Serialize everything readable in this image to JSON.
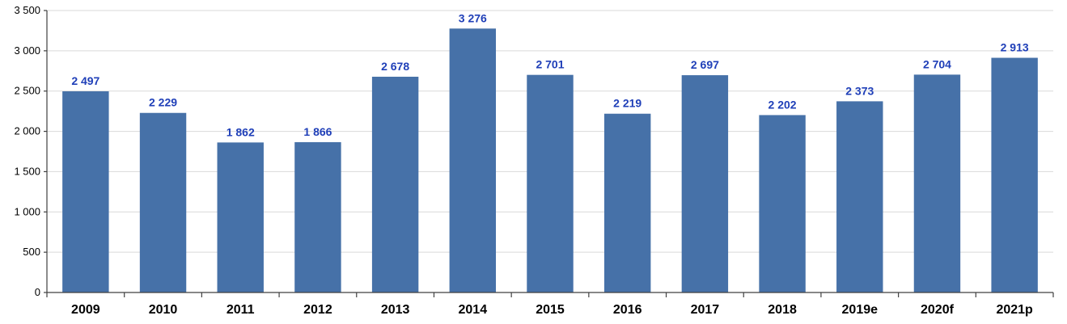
{
  "chart_data": {
    "type": "bar",
    "categories": [
      "2009",
      "2010",
      "2011",
      "2012",
      "2013",
      "2014",
      "2015",
      "2016",
      "2017",
      "2018",
      "2019e",
      "2020f",
      "2021p"
    ],
    "values": [
      2497,
      2229,
      1862,
      1866,
      2678,
      3276,
      2701,
      2219,
      2697,
      2202,
      2373,
      2704,
      2913
    ],
    "value_labels": [
      "2 497",
      "2 229",
      "1 862",
      "1 866",
      "2 678",
      "3 276",
      "2 701",
      "2 219",
      "2 697",
      "2 202",
      "2 373",
      "2 704",
      "2 913"
    ],
    "title": "",
    "xlabel": "",
    "ylabel": "",
    "ylim": [
      0,
      3500
    ],
    "yticks": [
      0,
      500,
      1000,
      1500,
      2000,
      2500,
      3000,
      3500
    ],
    "ytick_labels": [
      "0",
      "500",
      "1 000",
      "1 500",
      "2 000",
      "2 500",
      "3 000",
      "3 500"
    ],
    "grid": true,
    "legend": "none",
    "bar_color": "#4671a8",
    "label_color": "#1f3fb8"
  }
}
